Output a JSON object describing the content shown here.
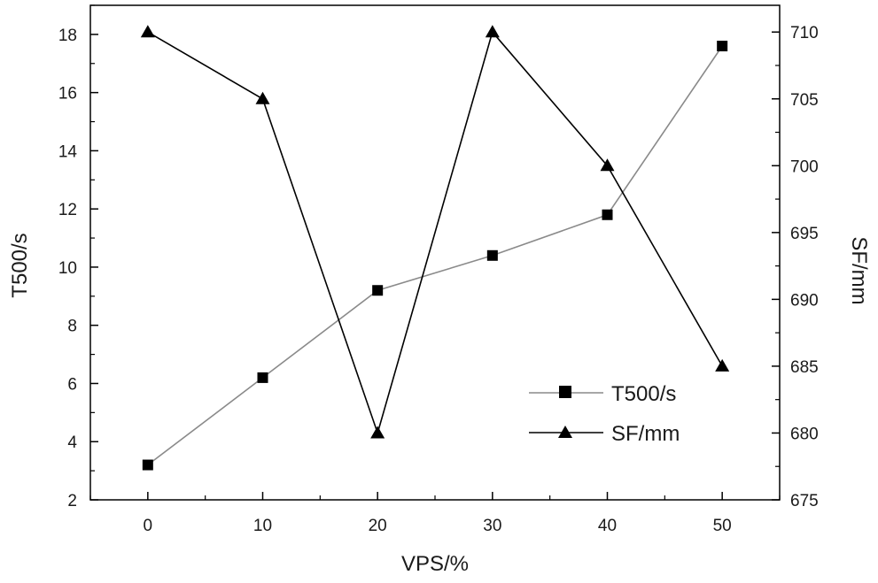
{
  "chart_data": {
    "type": "line",
    "x": [
      0,
      10,
      20,
      30,
      40,
      50
    ],
    "xlabel": "VPS/%",
    "ylabel": "T500/s",
    "y2label": "SF/mm",
    "xlim": [
      -5,
      55
    ],
    "ylim": [
      2,
      19
    ],
    "y2lim": [
      675,
      712
    ],
    "xticks": [
      0,
      10,
      20,
      30,
      40,
      50
    ],
    "yticks": [
      2,
      4,
      6,
      8,
      10,
      12,
      14,
      16,
      18
    ],
    "y2ticks": [
      675,
      680,
      685,
      690,
      695,
      700,
      705,
      710
    ],
    "legend_position": "bottom-right",
    "series": [
      {
        "name": "T500/s",
        "axis": "left",
        "marker": "square",
        "line_color": "#8a8a8a",
        "marker_color": "#000000",
        "values": [
          3.2,
          6.2,
          9.2,
          10.4,
          11.8,
          17.6
        ]
      },
      {
        "name": "SF/mm",
        "axis": "right",
        "marker": "triangle",
        "line_color": "#000000",
        "marker_color": "#000000",
        "values": [
          710,
          705,
          680,
          710,
          700,
          685
        ]
      }
    ]
  }
}
